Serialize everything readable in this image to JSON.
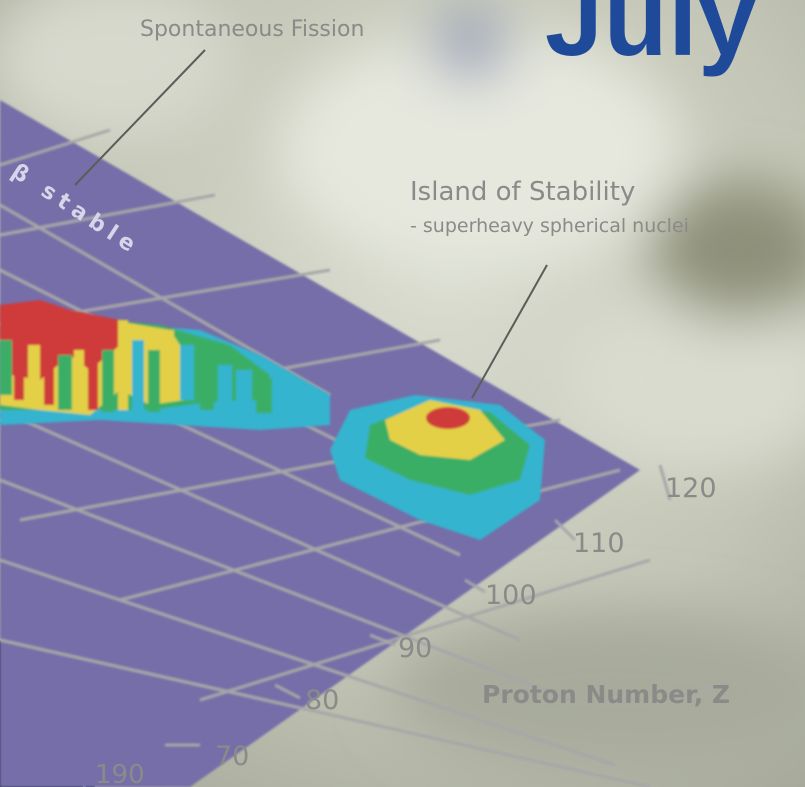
{
  "month_title": "July",
  "annotations": {
    "spontaneous_fission": "Spontaneous Fission",
    "island_title": "Island of Stability",
    "island_subtitle": "- superheavy spherical nuclei",
    "beta_label": "β stable"
  },
  "axis": {
    "proton_label": "Proton Number, Z",
    "proton_ticks": [
      "120",
      "110",
      "100",
      "90",
      "80",
      "70"
    ],
    "neutron_tick": "190"
  },
  "colors": {
    "title_blue": "#1f4a9a",
    "grid_plane": "#766ea8",
    "label_gray": "#8a8a88",
    "level_red": "#cf3b3a",
    "level_yellow": "#e3d046",
    "level_green": "#3aae66",
    "level_cyan": "#36b4cf"
  }
}
